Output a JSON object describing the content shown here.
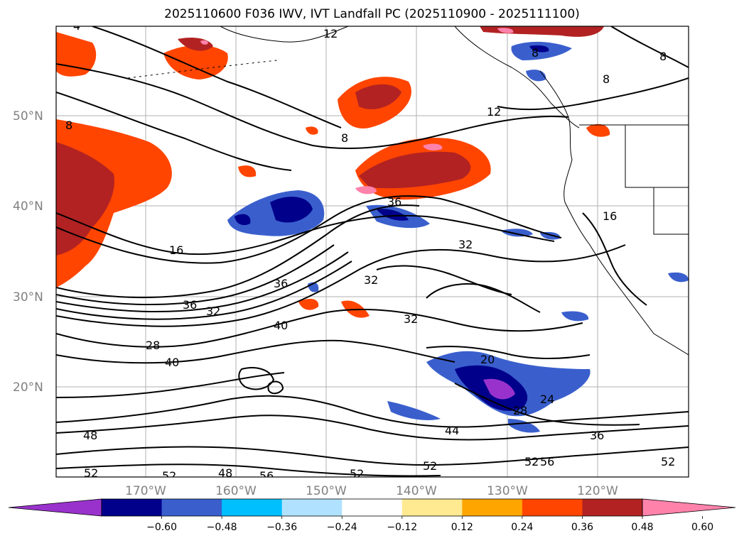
{
  "title": "2025110600 F036 IWV, IVT Landfall PC (2025110900 - 2025111100)",
  "map": {
    "lat_labels": [
      "50°N",
      "40°N",
      "30°N",
      "20°N"
    ],
    "lon_labels": [
      "170°W",
      "160°W",
      "150°W",
      "140°W",
      "130°W",
      "120°W"
    ],
    "contour_labels": [
      "4",
      "12",
      "8",
      "8",
      "12",
      "8",
      "8",
      "8",
      "36",
      "16",
      "32",
      "16",
      "36",
      "32",
      "36",
      "32",
      "32",
      "40",
      "28",
      "40",
      "20",
      "24",
      "28",
      "48",
      "44",
      "36",
      "52",
      "52",
      "48",
      "56",
      "52",
      "52",
      "52",
      "56",
      "52"
    ]
  },
  "colorbar": {
    "colors": [
      "#9932cc",
      "#00008b",
      "#3a5fcd",
      "#00bfff",
      "#b0e2ff",
      "#ffffff",
      "#ffe991",
      "#ffa500",
      "#ff4500",
      "#b22222",
      "#ff82ab"
    ],
    "tick_labels": [
      "−0.60",
      "−0.48",
      "−0.36",
      "−0.24",
      "−0.12",
      "0.12",
      "0.24",
      "0.36",
      "0.48",
      "0.60"
    ]
  }
}
